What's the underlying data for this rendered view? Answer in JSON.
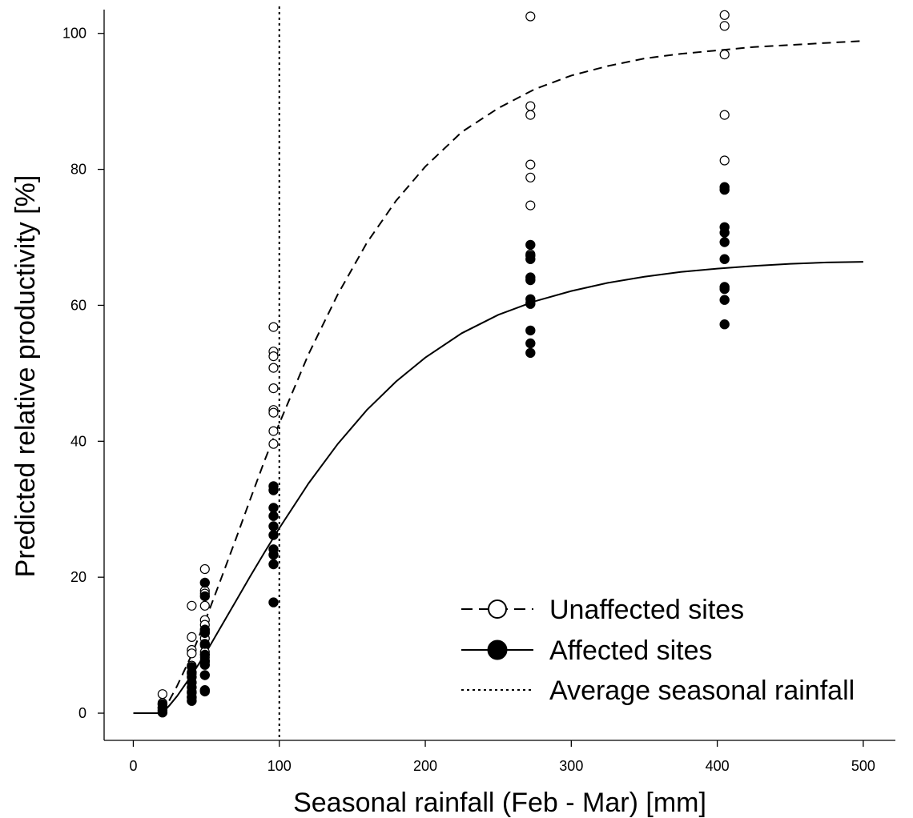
{
  "chart_data": {
    "type": "scatter",
    "xlabel": "Seasonal rainfall (Feb - Mar) [mm]",
    "ylabel": "Predicted relative productivity [%]",
    "xlim": [
      -20,
      522
    ],
    "ylim": [
      -4,
      103.5
    ],
    "xticks": [
      0,
      100,
      200,
      300,
      400,
      500
    ],
    "yticks": [
      0,
      20,
      40,
      60,
      80,
      100
    ],
    "grid": false,
    "legend_position": "bottom-right",
    "reference_line": {
      "name": "Average seasonal rainfall",
      "x": 100,
      "style": "dotted"
    },
    "series": [
      {
        "name": "Unaffected sites",
        "marker": "open-circle",
        "line_style": "dashed",
        "points": [
          [
            20,
            2.8
          ],
          [
            20,
            1.5
          ],
          [
            20,
            0.8
          ],
          [
            40,
            15.8
          ],
          [
            40,
            11.2
          ],
          [
            40,
            9.3
          ],
          [
            40,
            8.8
          ],
          [
            40,
            7.0
          ],
          [
            40,
            5.8
          ],
          [
            40,
            4.5
          ],
          [
            40,
            3.2
          ],
          [
            40,
            2.4
          ],
          [
            49,
            21.2
          ],
          [
            49,
            18.0
          ],
          [
            49,
            17.6
          ],
          [
            49,
            15.8
          ],
          [
            49,
            13.7
          ],
          [
            49,
            13.0
          ],
          [
            49,
            12.0
          ],
          [
            49,
            11.0
          ],
          [
            49,
            10.0
          ],
          [
            49,
            9.0
          ],
          [
            49,
            8.2
          ],
          [
            49,
            7.5
          ],
          [
            96,
            56.8
          ],
          [
            96,
            53.2
          ],
          [
            96,
            52.5
          ],
          [
            96,
            50.8
          ],
          [
            96,
            47.8
          ],
          [
            96,
            44.6
          ],
          [
            96,
            44.2
          ],
          [
            96,
            41.5
          ],
          [
            96,
            39.6
          ],
          [
            272,
            102.5
          ],
          [
            272,
            89.3
          ],
          [
            272,
            88.0
          ],
          [
            272,
            80.7
          ],
          [
            272,
            78.8
          ],
          [
            272,
            74.7
          ],
          [
            272,
            67.5
          ],
          [
            272,
            60.4
          ],
          [
            405,
            102.7
          ],
          [
            405,
            101.1
          ],
          [
            405,
            96.9
          ],
          [
            405,
            88.0
          ],
          [
            405,
            81.3
          ]
        ],
        "curve": [
          [
            0,
            0
          ],
          [
            20,
            0
          ],
          [
            25,
            2.0
          ],
          [
            30,
            4.0
          ],
          [
            40,
            8.6
          ],
          [
            50,
            14.0
          ],
          [
            60,
            19.7
          ],
          [
            70,
            25.5
          ],
          [
            80,
            31.4
          ],
          [
            90,
            37.2
          ],
          [
            100,
            42.6
          ],
          [
            120,
            52.8
          ],
          [
            140,
            61.6
          ],
          [
            160,
            69.2
          ],
          [
            180,
            75.4
          ],
          [
            200,
            80.4
          ],
          [
            225,
            85.5
          ],
          [
            250,
            89.0
          ],
          [
            275,
            91.8
          ],
          [
            300,
            93.8
          ],
          [
            325,
            95.2
          ],
          [
            350,
            96.3
          ],
          [
            375,
            97.0
          ],
          [
            400,
            97.5
          ],
          [
            425,
            98.0
          ],
          [
            450,
            98.3
          ],
          [
            475,
            98.6
          ],
          [
            500,
            98.9
          ]
        ]
      },
      {
        "name": "Affected sites",
        "marker": "filled-circle",
        "line_style": "solid",
        "points": [
          [
            20,
            1.3
          ],
          [
            20,
            0.8
          ],
          [
            20,
            0.4
          ],
          [
            20,
            0.1
          ],
          [
            40,
            6.8
          ],
          [
            40,
            6.0
          ],
          [
            40,
            5.3
          ],
          [
            40,
            4.5
          ],
          [
            40,
            3.8
          ],
          [
            40,
            3.0
          ],
          [
            40,
            2.3
          ],
          [
            40,
            1.8
          ],
          [
            49,
            19.2
          ],
          [
            49,
            17.2
          ],
          [
            49,
            12.3
          ],
          [
            49,
            11.8
          ],
          [
            49,
            10.2
          ],
          [
            49,
            8.6
          ],
          [
            49,
            7.7
          ],
          [
            49,
            7.1
          ],
          [
            49,
            5.6
          ],
          [
            49,
            3.4
          ],
          [
            49,
            3.2
          ],
          [
            96,
            33.4
          ],
          [
            96,
            32.8
          ],
          [
            96,
            30.2
          ],
          [
            96,
            29.0
          ],
          [
            96,
            27.5
          ],
          [
            96,
            26.2
          ],
          [
            96,
            24.1
          ],
          [
            96,
            23.3
          ],
          [
            96,
            21.9
          ],
          [
            96,
            16.3
          ],
          [
            272,
            68.9
          ],
          [
            272,
            67.3
          ],
          [
            272,
            66.8
          ],
          [
            272,
            64.1
          ],
          [
            272,
            63.7
          ],
          [
            272,
            60.9
          ],
          [
            272,
            60.2
          ],
          [
            272,
            56.3
          ],
          [
            272,
            54.4
          ],
          [
            272,
            53.0
          ],
          [
            405,
            77.4
          ],
          [
            405,
            77.0
          ],
          [
            405,
            71.5
          ],
          [
            405,
            70.7
          ],
          [
            405,
            69.3
          ],
          [
            405,
            66.8
          ],
          [
            405,
            62.7
          ],
          [
            405,
            62.4
          ],
          [
            405,
            60.8
          ],
          [
            405,
            57.2
          ]
        ],
        "curve": [
          [
            0,
            0
          ],
          [
            20,
            0
          ],
          [
            25,
            1.2
          ],
          [
            30,
            2.5
          ],
          [
            40,
            5.6
          ],
          [
            50,
            9.0
          ],
          [
            60,
            12.7
          ],
          [
            70,
            16.4
          ],
          [
            80,
            20.1
          ],
          [
            90,
            23.7
          ],
          [
            100,
            27.2
          ],
          [
            120,
            33.8
          ],
          [
            140,
            39.6
          ],
          [
            160,
            44.6
          ],
          [
            180,
            48.8
          ],
          [
            200,
            52.3
          ],
          [
            225,
            55.9
          ],
          [
            250,
            58.6
          ],
          [
            275,
            60.6
          ],
          [
            300,
            62.1
          ],
          [
            325,
            63.3
          ],
          [
            350,
            64.2
          ],
          [
            375,
            64.9
          ],
          [
            400,
            65.4
          ],
          [
            425,
            65.8
          ],
          [
            450,
            66.1
          ],
          [
            475,
            66.3
          ],
          [
            500,
            66.4
          ]
        ]
      }
    ]
  }
}
